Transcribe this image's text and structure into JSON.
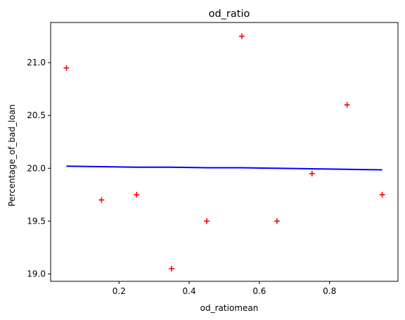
{
  "chart_data": {
    "type": "scatter",
    "title": "od_ratio",
    "xlabel": "od_ratiomean",
    "ylabel": "Percentage_of_bad_loan",
    "xlim": [
      0.005,
      0.995
    ],
    "ylim": [
      18.93,
      21.38
    ],
    "xticks": [
      0.2,
      0.4,
      0.6,
      0.8
    ],
    "xtick_labels": [
      "0.2",
      "0.4",
      "0.6",
      "0.8"
    ],
    "yticks": [
      19.0,
      19.5,
      20.0,
      20.5,
      21.0
    ],
    "ytick_labels": [
      "19.0",
      "19.5",
      "20.0",
      "20.5",
      "21.0"
    ],
    "grid": false,
    "series": [
      {
        "kind": "scatter",
        "marker": "plus",
        "color": "#ff0000",
        "x": [
          0.05,
          0.15,
          0.25,
          0.35,
          0.45,
          0.55,
          0.65,
          0.75,
          0.85,
          0.95
        ],
        "y": [
          20.95,
          19.7,
          19.75,
          19.05,
          19.5,
          21.25,
          19.5,
          19.95,
          20.6,
          19.75
        ]
      },
      {
        "kind": "line",
        "color": "#0000ff",
        "x": [
          0.05,
          0.15,
          0.25,
          0.35,
          0.45,
          0.55,
          0.65,
          0.75,
          0.85,
          0.95
        ],
        "y": [
          20.02,
          20.015,
          20.01,
          20.01,
          20.005,
          20.005,
          20.0,
          19.995,
          19.99,
          19.985
        ]
      }
    ]
  }
}
